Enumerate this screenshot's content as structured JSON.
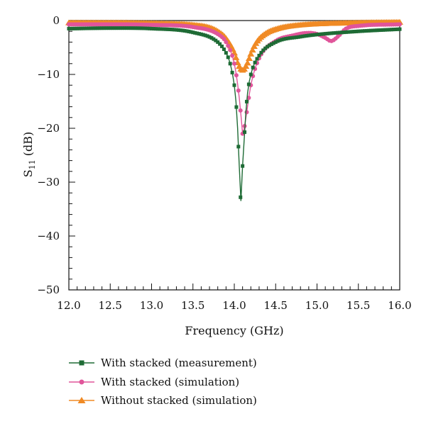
{
  "chart_data": {
    "type": "line",
    "title": "",
    "xlabel": "Frequency (GHz)",
    "ylabel_main": "S",
    "ylabel_sub": "11",
    "ylabel_unit": " (dB)",
    "xlim": [
      12.0,
      16.0
    ],
    "ylim": [
      -50,
      0
    ],
    "x_ticks": [
      "12.0",
      "12.5",
      "13.0",
      "13.5",
      "14.0",
      "14.5",
      "15.0",
      "15.5",
      "16.0"
    ],
    "x_tick_values": [
      12.0,
      12.5,
      13.0,
      13.5,
      14.0,
      14.5,
      15.0,
      15.5,
      16.0
    ],
    "y_ticks": [
      "0",
      "−10",
      "−20",
      "−30",
      "−40",
      "−50"
    ],
    "y_tick_values": [
      0,
      -10,
      -20,
      -30,
      -40,
      -50
    ],
    "grid": false,
    "legend_position": "below",
    "series": [
      {
        "name": "With stacked (measurement)",
        "marker": "square",
        "color": "#1e6b35",
        "x": [
          12.0,
          12.5,
          13.0,
          13.5,
          13.8,
          13.9,
          13.95,
          14.0,
          14.02,
          14.04,
          14.06,
          14.08,
          14.1,
          14.12,
          14.14,
          14.16,
          14.2,
          14.3,
          14.5,
          14.8,
          15.0,
          15.5,
          16.0
        ],
        "y": [
          -1.5,
          -1.4,
          -1.5,
          -2.2,
          -4.0,
          -6.0,
          -8.0,
          -12.0,
          -15.0,
          -20.0,
          -27.0,
          -33.5,
          -27.0,
          -22.0,
          -17.0,
          -13.5,
          -10.0,
          -6.5,
          -4.0,
          -3.0,
          -2.6,
          -2.0,
          -1.6
        ]
      },
      {
        "name": "With stacked (simulation)",
        "marker": "circle",
        "color": "#e0559a",
        "x": [
          12.0,
          12.5,
          13.0,
          13.5,
          13.8,
          13.9,
          14.0,
          14.05,
          14.08,
          14.1,
          14.12,
          14.15,
          14.2,
          14.3,
          14.5,
          14.7,
          14.9,
          15.0,
          15.1,
          15.17,
          15.25,
          15.35,
          15.5,
          16.0
        ],
        "y": [
          -0.7,
          -0.7,
          -0.8,
          -1.2,
          -2.5,
          -4.0,
          -8.0,
          -13.0,
          -17.5,
          -21.0,
          -20.0,
          -17.0,
          -12.0,
          -7.0,
          -3.8,
          -2.8,
          -2.3,
          -2.5,
          -3.2,
          -3.8,
          -3.0,
          -1.5,
          -1.0,
          -0.7
        ]
      },
      {
        "name": "Without stacked (simulation)",
        "marker": "triangle",
        "color": "#f08a24",
        "x": [
          12.0,
          12.5,
          13.0,
          13.5,
          13.7,
          13.8,
          13.9,
          14.0,
          14.05,
          14.1,
          14.15,
          14.2,
          14.25,
          14.3,
          14.4,
          14.5,
          14.6,
          14.8,
          15.0,
          15.5,
          16.0
        ],
        "y": [
          -0.4,
          -0.4,
          -0.5,
          -0.8,
          -1.3,
          -2.0,
          -3.3,
          -6.0,
          -8.2,
          -9.2,
          -8.2,
          -6.2,
          -4.5,
          -3.4,
          -2.2,
          -1.6,
          -1.2,
          -0.8,
          -0.6,
          -0.4,
          -0.3
        ]
      }
    ]
  }
}
